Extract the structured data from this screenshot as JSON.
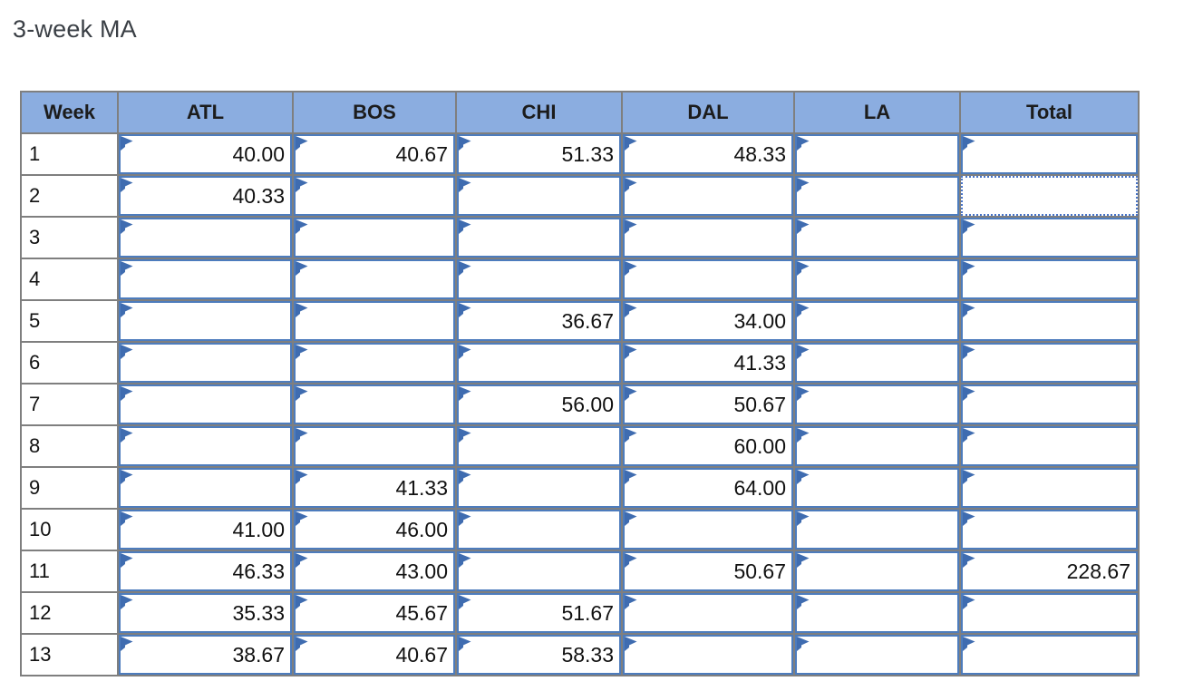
{
  "title": "3-week MA",
  "colors": {
    "header_fill": "#8badе0",
    "header_fill_hex": "#8bade0",
    "cell_border": "#4d7cbd",
    "flag_blue": "#3f6cb0",
    "dot_blue": "#4673c8",
    "grid_gray": "#7f7f7f"
  },
  "table": {
    "columns": [
      "Week",
      "ATL",
      "BOS",
      "CHI",
      "DAL",
      "LA",
      "Total"
    ],
    "rows": [
      {
        "week": "1",
        "values": [
          "40.00",
          "40.67",
          "51.33",
          "48.33",
          "",
          ""
        ]
      },
      {
        "week": "2",
        "values": [
          "40.33",
          "",
          "",
          "",
          "",
          ""
        ]
      },
      {
        "week": "3",
        "values": [
          "",
          "",
          "",
          "",
          "",
          ""
        ]
      },
      {
        "week": "4",
        "values": [
          "",
          "",
          "",
          "",
          "",
          ""
        ]
      },
      {
        "week": "5",
        "values": [
          "",
          "",
          "36.67",
          "34.00",
          "",
          ""
        ]
      },
      {
        "week": "6",
        "values": [
          "",
          "",
          "",
          "41.33",
          "",
          ""
        ]
      },
      {
        "week": "7",
        "values": [
          "",
          "",
          "56.00",
          "50.67",
          "",
          ""
        ]
      },
      {
        "week": "8",
        "values": [
          "",
          "",
          "",
          "60.00",
          "",
          ""
        ]
      },
      {
        "week": "9",
        "values": [
          "",
          "41.33",
          "",
          "64.00",
          "",
          ""
        ]
      },
      {
        "week": "10",
        "values": [
          "41.00",
          "46.00",
          "",
          "",
          "",
          ""
        ]
      },
      {
        "week": "11",
        "values": [
          "46.33",
          "43.00",
          "",
          "50.67",
          "",
          "228.67"
        ]
      },
      {
        "week": "12",
        "values": [
          "35.33",
          "45.67",
          "51.67",
          "",
          "",
          ""
        ]
      },
      {
        "week": "13",
        "values": [
          "38.67",
          "40.67",
          "58.33",
          "",
          "",
          ""
        ]
      }
    ],
    "selected_cell": {
      "week": "2",
      "column": "Total"
    }
  }
}
